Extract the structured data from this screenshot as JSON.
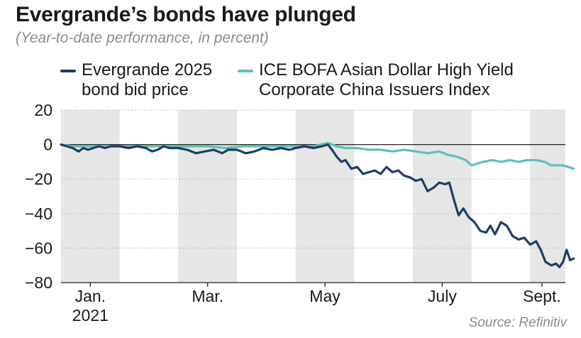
{
  "title": "Evergrande’s bonds have plunged",
  "subtitle": "(Year-to-date performance, in percent)",
  "source": "Source: Refinitiv",
  "colors": {
    "evergrande": "#1f3d66",
    "ice": "#5ec1b5",
    "band": "#e6e6e6",
    "grid": "#b9b9b9"
  },
  "chart_data": {
    "type": "line",
    "title": "Evergrande’s bonds have plunged",
    "subtitle": "(Year-to-date performance, in percent)",
    "ylim": [
      -80,
      20
    ],
    "yticks": [
      20,
      0,
      -20,
      -40,
      -60,
      -80
    ],
    "ytick_labels": [
      "20",
      "0",
      "−20",
      "−40",
      "−60",
      "−80"
    ],
    "xlim": [
      0,
      8.6
    ],
    "xticks": [
      {
        "x": 0.5,
        "label": "Jan.",
        "label2": "2021"
      },
      {
        "x": 2.5,
        "label": "Mar.",
        "label2": ""
      },
      {
        "x": 4.5,
        "label": "May",
        "label2": ""
      },
      {
        "x": 6.5,
        "label": "July",
        "label2": ""
      },
      {
        "x": 8.2,
        "label": "Sept.",
        "label2": ""
      }
    ],
    "shaded_months": [
      [
        0,
        1
      ],
      [
        2,
        3
      ],
      [
        4,
        5
      ],
      [
        6,
        7
      ],
      [
        8,
        8.6
      ]
    ],
    "grid": "horizontal dotted",
    "legend_position": "top",
    "series": [
      {
        "name": "Evergrande 2025 bond bid price",
        "legend_lines": [
          "Evergrande 2025",
          "bond bid price"
        ],
        "color_key": "evergrande",
        "points": [
          [
            0.0,
            0
          ],
          [
            0.1,
            -1
          ],
          [
            0.2,
            -2
          ],
          [
            0.3,
            -4
          ],
          [
            0.38,
            -2
          ],
          [
            0.46,
            -3
          ],
          [
            0.55,
            -2
          ],
          [
            0.65,
            -1
          ],
          [
            0.75,
            -2
          ],
          [
            0.85,
            -1
          ],
          [
            1.0,
            -1
          ],
          [
            1.15,
            -2
          ],
          [
            1.3,
            -1
          ],
          [
            1.45,
            -2
          ],
          [
            1.55,
            -4
          ],
          [
            1.65,
            -3
          ],
          [
            1.75,
            -1
          ],
          [
            1.85,
            -2
          ],
          [
            2.0,
            -2
          ],
          [
            2.15,
            -3
          ],
          [
            2.3,
            -5
          ],
          [
            2.45,
            -4
          ],
          [
            2.6,
            -3
          ],
          [
            2.75,
            -5
          ],
          [
            2.85,
            -3
          ],
          [
            3.0,
            -3
          ],
          [
            3.15,
            -5
          ],
          [
            3.3,
            -4
          ],
          [
            3.45,
            -2
          ],
          [
            3.6,
            -3
          ],
          [
            3.75,
            -2
          ],
          [
            3.9,
            -3
          ],
          [
            4.0,
            -2
          ],
          [
            4.15,
            -1
          ],
          [
            4.3,
            -2
          ],
          [
            4.45,
            -1
          ],
          [
            4.55,
            0
          ],
          [
            4.62,
            -3
          ],
          [
            4.7,
            -7
          ],
          [
            4.78,
            -10
          ],
          [
            4.85,
            -9
          ],
          [
            4.95,
            -14
          ],
          [
            5.05,
            -13
          ],
          [
            5.15,
            -17
          ],
          [
            5.25,
            -16
          ],
          [
            5.35,
            -15
          ],
          [
            5.45,
            -17
          ],
          [
            5.55,
            -13
          ],
          [
            5.65,
            -16
          ],
          [
            5.75,
            -15
          ],
          [
            5.85,
            -18
          ],
          [
            5.95,
            -19
          ],
          [
            6.05,
            -21
          ],
          [
            6.15,
            -20
          ],
          [
            6.25,
            -27
          ],
          [
            6.35,
            -25
          ],
          [
            6.45,
            -22
          ],
          [
            6.55,
            -23
          ],
          [
            6.62,
            -22
          ],
          [
            6.7,
            -32
          ],
          [
            6.78,
            -41
          ],
          [
            6.86,
            -37
          ],
          [
            6.95,
            -42
          ],
          [
            7.05,
            -45
          ],
          [
            7.15,
            -50
          ],
          [
            7.25,
            -51
          ],
          [
            7.32,
            -47
          ],
          [
            7.4,
            -52
          ],
          [
            7.5,
            -45
          ],
          [
            7.6,
            -47
          ],
          [
            7.7,
            -53
          ],
          [
            7.8,
            -55
          ],
          [
            7.9,
            -54
          ],
          [
            8.0,
            -58
          ],
          [
            8.1,
            -56
          ],
          [
            8.18,
            -61
          ],
          [
            8.26,
            -68
          ],
          [
            8.36,
            -70
          ],
          [
            8.44,
            -69
          ],
          [
            8.5,
            -71
          ],
          [
            8.56,
            -68
          ],
          [
            8.62,
            -61
          ],
          [
            8.68,
            -67
          ],
          [
            8.74,
            -66
          ]
        ]
      },
      {
        "name": "ICE BOFA Asian Dollar High Yield Corporate China Issuers Index",
        "legend_lines": [
          "ICE BOFA Asian Dollar High Yield",
          "Corporate China Issuers Index"
        ],
        "color_key": "ice",
        "points": [
          [
            0.0,
            0
          ],
          [
            0.2,
            -1
          ],
          [
            0.4,
            -1
          ],
          [
            0.6,
            -1
          ],
          [
            0.8,
            -1
          ],
          [
            1.0,
            -1
          ],
          [
            1.3,
            -1
          ],
          [
            1.6,
            -1
          ],
          [
            1.9,
            -1
          ],
          [
            2.2,
            -1
          ],
          [
            2.5,
            -1
          ],
          [
            2.8,
            -2
          ],
          [
            3.1,
            -1
          ],
          [
            3.4,
            -1
          ],
          [
            3.7,
            -1
          ],
          [
            4.0,
            -1
          ],
          [
            4.3,
            -1
          ],
          [
            4.55,
            1
          ],
          [
            4.7,
            -1
          ],
          [
            4.85,
            -2
          ],
          [
            5.05,
            -2
          ],
          [
            5.25,
            -3
          ],
          [
            5.45,
            -3
          ],
          [
            5.65,
            -4
          ],
          [
            5.85,
            -3
          ],
          [
            6.05,
            -4
          ],
          [
            6.25,
            -5
          ],
          [
            6.45,
            -4
          ],
          [
            6.6,
            -6
          ],
          [
            6.75,
            -7
          ],
          [
            6.9,
            -9
          ],
          [
            7.0,
            -12
          ],
          [
            7.1,
            -11
          ],
          [
            7.2,
            -10
          ],
          [
            7.35,
            -9
          ],
          [
            7.5,
            -10
          ],
          [
            7.65,
            -9
          ],
          [
            7.8,
            -10
          ],
          [
            7.95,
            -9
          ],
          [
            8.1,
            -9
          ],
          [
            8.25,
            -10
          ],
          [
            8.35,
            -12
          ],
          [
            8.45,
            -12
          ],
          [
            8.55,
            -12
          ],
          [
            8.65,
            -13
          ],
          [
            8.74,
            -14
          ]
        ]
      }
    ]
  }
}
